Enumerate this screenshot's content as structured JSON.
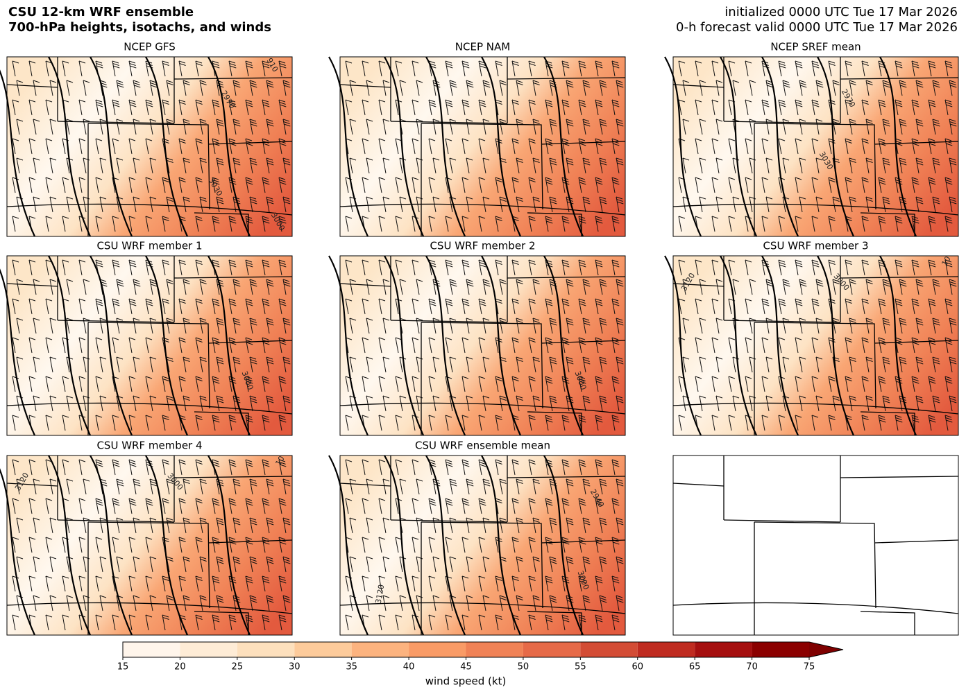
{
  "header": {
    "title": [
      "CSU 12-km WRF ensemble",
      "700-hPa heights, isotachs, and winds"
    ],
    "init": "initialized 0000 UTC Tue 17 Mar 2026",
    "valid": "0-h forecast valid 0000 UTC Tue 17 Mar 2026"
  },
  "panels": [
    {
      "title": "NCEP GFS",
      "contour_labels": [
        "910",
        "2970",
        "3030",
        "3000"
      ]
    },
    {
      "title": "NCEP NAM",
      "contour_labels": []
    },
    {
      "title": "NCEP SREF mean",
      "contour_labels": [
        "2970",
        "3030"
      ]
    },
    {
      "title": "CSU WRF member 1",
      "contour_labels": [
        "3000"
      ]
    },
    {
      "title": "CSU WRF member 2",
      "contour_labels": [
        "3000"
      ]
    },
    {
      "title": "CSU WRF member 3",
      "contour_labels": [
        "3120",
        "3000",
        "10"
      ]
    },
    {
      "title": "CSU WRF member 4",
      "contour_labels": [
        "3120",
        "3000",
        "10"
      ]
    },
    {
      "title": "CSU WRF ensemble mean",
      "contour_labels": [
        "2940",
        "3000",
        "3120"
      ]
    }
  ],
  "colorbar": {
    "label": "wind speed (kt)",
    "ticks": [
      15,
      20,
      25,
      30,
      35,
      40,
      45,
      50,
      55,
      60,
      65,
      70,
      75
    ],
    "colors": [
      "#fff5eb",
      "#feecd6",
      "#fde0bd",
      "#fdcb9b",
      "#fcb37f",
      "#f99b66",
      "#f08256",
      "#e66a48",
      "#d34c35",
      "#bf2b20",
      "#a50f0f",
      "#8b0000"
    ],
    "extend_color": "#7f0000"
  }
}
